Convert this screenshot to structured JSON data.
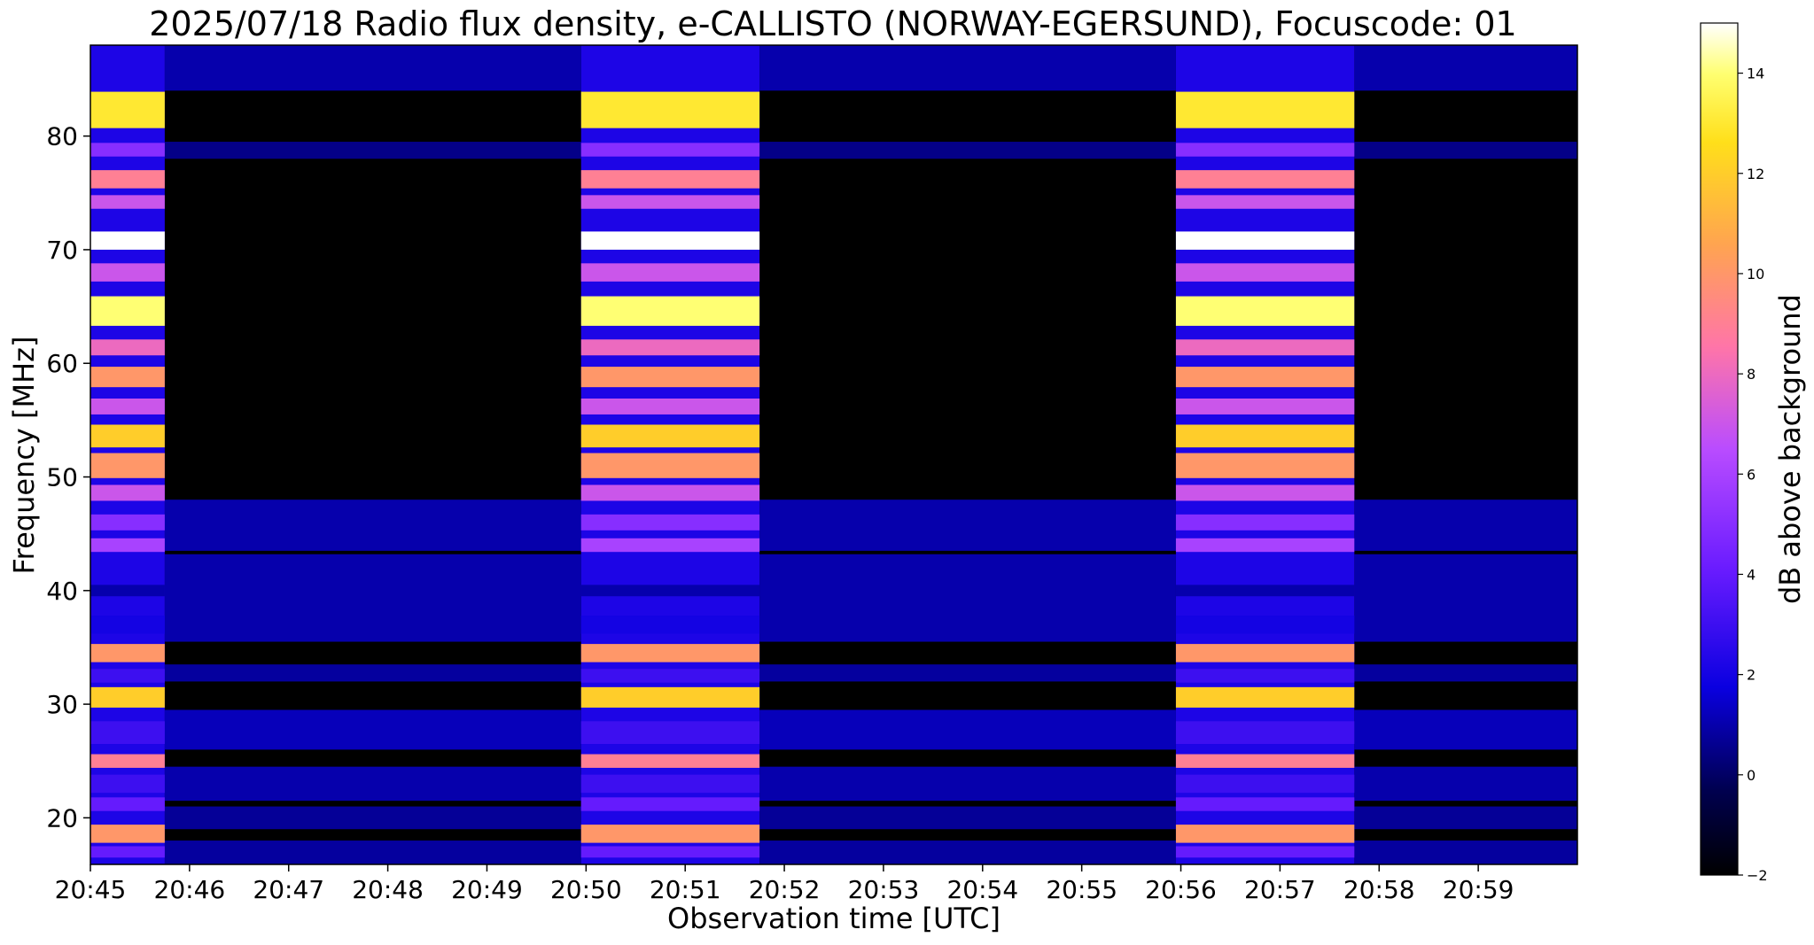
{
  "chart_data": {
    "type": "heatmap",
    "title": "2025/07/18  Radio flux density, e-CALLISTO (NORWAY-EGERSUND), Focuscode: 01",
    "xlabel": "Observation time [UTC]",
    "ylabel": "Frequency [MHz]",
    "colorbar_label": "dB above background",
    "colormap": "gnuplot2",
    "x_range_min": [
      45,
      60
    ],
    "x_tick_values_min": [
      45,
      46,
      47,
      48,
      49,
      50,
      51,
      52,
      53,
      54,
      55,
      56,
      57,
      58,
      59
    ],
    "x_tick_labels": [
      "20:45",
      "20:46",
      "20:47",
      "20:48",
      "20:49",
      "20:50",
      "20:51",
      "20:52",
      "20:53",
      "20:54",
      "20:55",
      "20:56",
      "20:57",
      "20:58",
      "20:59"
    ],
    "ylim": [
      15.9,
      88.0
    ],
    "y_ticks": [
      20,
      30,
      40,
      50,
      60,
      70,
      80
    ],
    "y_tick_labels": [
      "20",
      "30",
      "40",
      "50",
      "60",
      "70",
      "80"
    ],
    "clim": [
      -2,
      15
    ],
    "colorbar_ticks": [
      -2,
      0,
      2,
      4,
      6,
      8,
      10,
      12,
      14
    ],
    "colorbar_tick_labels": [
      "−2",
      "0",
      "2",
      "4",
      "6",
      "8",
      "10",
      "12",
      "14"
    ],
    "bright_intervals_min": [
      [
        45.0,
        45.75
      ],
      [
        49.95,
        51.75
      ],
      [
        55.95,
        57.75
      ]
    ],
    "emission_bands_mhz": [
      {
        "center": 82.3,
        "width": 3.2,
        "db": 13
      },
      {
        "center": 78.8,
        "width": 1.2,
        "db": 5
      },
      {
        "center": 76.2,
        "width": 1.6,
        "db": 9
      },
      {
        "center": 74.2,
        "width": 1.2,
        "db": 7
      },
      {
        "center": 70.8,
        "width": 1.6,
        "db": 15
      },
      {
        "center": 68.0,
        "width": 1.6,
        "db": 7
      },
      {
        "center": 64.6,
        "width": 2.6,
        "db": 14
      },
      {
        "center": 61.4,
        "width": 1.4,
        "db": 8
      },
      {
        "center": 58.8,
        "width": 1.8,
        "db": 10
      },
      {
        "center": 56.2,
        "width": 1.4,
        "db": 7
      },
      {
        "center": 53.6,
        "width": 2.0,
        "db": 12
      },
      {
        "center": 51.0,
        "width": 2.2,
        "db": 10
      },
      {
        "center": 48.6,
        "width": 1.4,
        "db": 7
      },
      {
        "center": 46.0,
        "width": 1.4,
        "db": 5
      },
      {
        "center": 44.0,
        "width": 1.2,
        "db": 6
      },
      {
        "center": 40.0,
        "width": 1.0,
        "db": 1
      },
      {
        "center": 37.0,
        "width": 1.6,
        "db": 2
      },
      {
        "center": 34.5,
        "width": 1.6,
        "db": 10
      },
      {
        "center": 32.5,
        "width": 1.2,
        "db": 3
      },
      {
        "center": 30.6,
        "width": 1.8,
        "db": 12
      },
      {
        "center": 27.5,
        "width": 2.0,
        "db": 3
      },
      {
        "center": 25.0,
        "width": 1.2,
        "db": 9
      },
      {
        "center": 23.0,
        "width": 1.6,
        "db": 3
      },
      {
        "center": 21.2,
        "width": 1.2,
        "db": 4
      },
      {
        "center": 18.6,
        "width": 1.6,
        "db": 10
      },
      {
        "center": 17.0,
        "width": 1.0,
        "db": 4
      }
    ],
    "quiet_bands_mhz": [
      {
        "min": 84.0,
        "max": 88.0,
        "db": 1
      },
      {
        "min": 78.0,
        "max": 79.5,
        "db": 0.5
      },
      {
        "min": 43.5,
        "max": 48.0,
        "db": 1
      },
      {
        "min": 35.5,
        "max": 43.2,
        "db": 1
      },
      {
        "min": 32.0,
        "max": 33.5,
        "db": 0.8
      },
      {
        "min": 26.0,
        "max": 29.5,
        "db": 1.2
      },
      {
        "min": 21.5,
        "max": 24.5,
        "db": 1.0
      },
      {
        "min": 19.0,
        "max": 21.0,
        "db": 0.7
      },
      {
        "min": 15.9,
        "max": 18.0,
        "db": 0.8
      }
    ]
  }
}
